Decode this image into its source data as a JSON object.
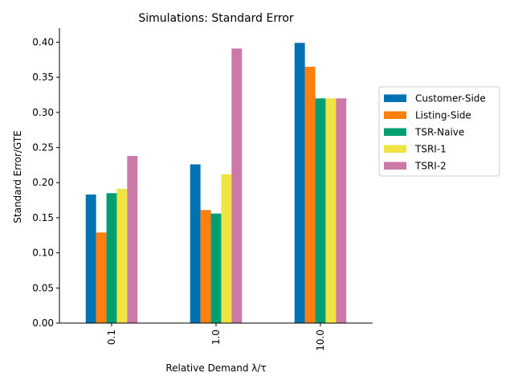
{
  "chart_data": {
    "type": "bar",
    "title": "Simulations: Standard Error",
    "xlabel": "Relative Demand λ/τ",
    "ylabel": "Standard Error/GTE",
    "categories": [
      "0.1",
      "1.0",
      "10.0"
    ],
    "ylim": [
      0,
      0.42
    ],
    "yticks": [
      "0.00",
      "0.05",
      "0.10",
      "0.15",
      "0.20",
      "0.25",
      "0.30",
      "0.35",
      "0.40"
    ],
    "grid": false,
    "legend_position": "right",
    "series": [
      {
        "name": "Customer-Side",
        "color": "#0072b2",
        "values": [
          0.183,
          0.226,
          0.399
        ]
      },
      {
        "name": "Listing-Side",
        "color": "#ff7f0e",
        "values": [
          0.129,
          0.161,
          0.365
        ]
      },
      {
        "name": "TSR-Naive",
        "color": "#009e73",
        "values": [
          0.185,
          0.156,
          0.32
        ]
      },
      {
        "name": "TSRI-1",
        "color": "#f0e442",
        "values": [
          0.191,
          0.212,
          0.32
        ]
      },
      {
        "name": "TSRI-2",
        "color": "#cc79a7",
        "values": [
          0.238,
          0.391,
          0.32
        ]
      }
    ]
  }
}
